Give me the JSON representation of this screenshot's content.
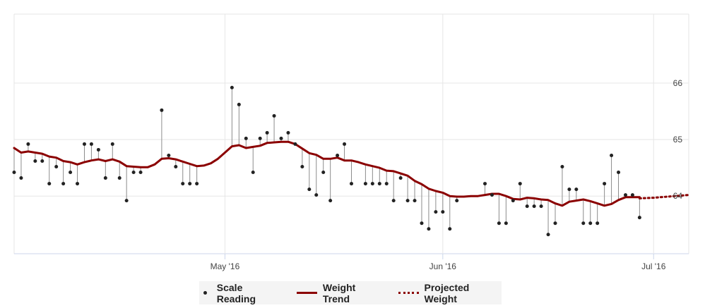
{
  "chart_data": {
    "type": "line",
    "x_range": [
      "2016-04-01",
      "2016-07-06"
    ],
    "ylim": [
      62.98,
      67.22
    ],
    "y_ticks": [
      64,
      65,
      66
    ],
    "x_ticks": [
      {
        "date": "2016-05-01",
        "label": "May '16"
      },
      {
        "date": "2016-06-01",
        "label": "Jun '16"
      },
      {
        "date": "2016-07-01",
        "label": "Jul '16"
      }
    ],
    "grid": true,
    "legend_position": "bottom",
    "series": [
      {
        "name": "Scale Reading",
        "kind": "scatter",
        "color": "#222222",
        "points": [
          [
            "2016-04-01",
            64.42
          ],
          [
            "2016-04-02",
            64.32
          ],
          [
            "2016-04-03",
            64.92
          ],
          [
            "2016-04-04",
            64.62
          ],
          [
            "2016-04-05",
            64.62
          ],
          [
            "2016-04-06",
            64.22
          ],
          [
            "2016-04-07",
            64.52
          ],
          [
            "2016-04-08",
            64.22
          ],
          [
            "2016-04-09",
            64.42
          ],
          [
            "2016-04-10",
            64.22
          ],
          [
            "2016-04-11",
            64.92
          ],
          [
            "2016-04-12",
            64.92
          ],
          [
            "2016-04-13",
            64.82
          ],
          [
            "2016-04-14",
            64.32
          ],
          [
            "2016-04-15",
            64.92
          ],
          [
            "2016-04-16",
            64.32
          ],
          [
            "2016-04-17",
            63.92
          ],
          [
            "2016-04-18",
            64.42
          ],
          [
            "2016-04-19",
            64.42
          ],
          [
            "2016-04-22",
            65.52
          ],
          [
            "2016-04-23",
            64.72
          ],
          [
            "2016-04-24",
            64.52
          ],
          [
            "2016-04-25",
            64.22
          ],
          [
            "2016-04-26",
            64.22
          ],
          [
            "2016-04-27",
            64.22
          ],
          [
            "2016-05-02",
            65.92
          ],
          [
            "2016-05-03",
            65.62
          ],
          [
            "2016-05-04",
            65.02
          ],
          [
            "2016-05-05",
            64.42
          ],
          [
            "2016-05-06",
            65.02
          ],
          [
            "2016-05-07",
            65.12
          ],
          [
            "2016-05-08",
            65.42
          ],
          [
            "2016-05-09",
            65.02
          ],
          [
            "2016-05-10",
            65.12
          ],
          [
            "2016-05-11",
            64.92
          ],
          [
            "2016-05-12",
            64.52
          ],
          [
            "2016-05-13",
            64.12
          ],
          [
            "2016-05-14",
            64.02
          ],
          [
            "2016-05-15",
            64.42
          ],
          [
            "2016-05-16",
            63.92
          ],
          [
            "2016-05-17",
            64.72
          ],
          [
            "2016-05-18",
            64.92
          ],
          [
            "2016-05-19",
            64.22
          ],
          [
            "2016-05-21",
            64.22
          ],
          [
            "2016-05-22",
            64.22
          ],
          [
            "2016-05-23",
            64.22
          ],
          [
            "2016-05-24",
            64.22
          ],
          [
            "2016-05-25",
            63.92
          ],
          [
            "2016-05-26",
            64.32
          ],
          [
            "2016-05-27",
            63.92
          ],
          [
            "2016-05-28",
            63.92
          ],
          [
            "2016-05-29",
            63.52
          ],
          [
            "2016-05-30",
            63.42
          ],
          [
            "2016-05-31",
            63.72
          ],
          [
            "2016-06-01",
            63.72
          ],
          [
            "2016-06-02",
            63.42
          ],
          [
            "2016-06-03",
            63.92
          ],
          [
            "2016-06-07",
            64.22
          ],
          [
            "2016-06-08",
            64.02
          ],
          [
            "2016-06-09",
            63.52
          ],
          [
            "2016-06-10",
            63.52
          ],
          [
            "2016-06-11",
            63.92
          ],
          [
            "2016-06-12",
            64.22
          ],
          [
            "2016-06-13",
            63.82
          ],
          [
            "2016-06-14",
            63.82
          ],
          [
            "2016-06-15",
            63.82
          ],
          [
            "2016-06-16",
            63.32
          ],
          [
            "2016-06-17",
            63.52
          ],
          [
            "2016-06-18",
            64.52
          ],
          [
            "2016-06-19",
            64.12
          ],
          [
            "2016-06-20",
            64.12
          ],
          [
            "2016-06-21",
            63.52
          ],
          [
            "2016-06-22",
            63.52
          ],
          [
            "2016-06-23",
            63.52
          ],
          [
            "2016-06-24",
            64.22
          ],
          [
            "2016-06-25",
            64.72
          ],
          [
            "2016-06-26",
            64.42
          ],
          [
            "2016-06-27",
            64.02
          ],
          [
            "2016-06-28",
            64.02
          ],
          [
            "2016-06-29",
            63.62
          ]
        ]
      },
      {
        "name": "Weight Trend",
        "kind": "line",
        "color": "#8b0000",
        "points": [
          [
            "2016-04-01",
            64.85
          ],
          [
            "2016-04-02",
            64.77
          ],
          [
            "2016-04-03",
            64.79
          ],
          [
            "2016-04-04",
            64.77
          ],
          [
            "2016-04-05",
            64.75
          ],
          [
            "2016-04-06",
            64.7
          ],
          [
            "2016-04-07",
            64.68
          ],
          [
            "2016-04-08",
            64.62
          ],
          [
            "2016-04-09",
            64.6
          ],
          [
            "2016-04-10",
            64.56
          ],
          [
            "2016-04-11",
            64.6
          ],
          [
            "2016-04-12",
            64.63
          ],
          [
            "2016-04-13",
            64.65
          ],
          [
            "2016-04-14",
            64.62
          ],
          [
            "2016-04-15",
            64.65
          ],
          [
            "2016-04-16",
            64.61
          ],
          [
            "2016-04-17",
            64.53
          ],
          [
            "2016-04-18",
            64.52
          ],
          [
            "2016-04-19",
            64.51
          ],
          [
            "2016-04-20",
            64.51
          ],
          [
            "2016-04-21",
            64.56
          ],
          [
            "2016-04-22",
            64.66
          ],
          [
            "2016-04-23",
            64.67
          ],
          [
            "2016-04-24",
            64.65
          ],
          [
            "2016-04-25",
            64.61
          ],
          [
            "2016-04-26",
            64.57
          ],
          [
            "2016-04-27",
            64.53
          ],
          [
            "2016-04-28",
            64.54
          ],
          [
            "2016-04-29",
            64.58
          ],
          [
            "2016-04-30",
            64.66
          ],
          [
            "2016-05-01",
            64.77
          ],
          [
            "2016-05-02",
            64.88
          ],
          [
            "2016-05-03",
            64.9
          ],
          [
            "2016-05-04",
            64.85
          ],
          [
            "2016-05-05",
            64.87
          ],
          [
            "2016-05-06",
            64.89
          ],
          [
            "2016-05-07",
            64.94
          ],
          [
            "2016-05-08",
            64.95
          ],
          [
            "2016-05-09",
            64.96
          ],
          [
            "2016-05-10",
            64.96
          ],
          [
            "2016-05-11",
            64.92
          ],
          [
            "2016-05-12",
            64.84
          ],
          [
            "2016-05-13",
            64.76
          ],
          [
            "2016-05-14",
            64.73
          ],
          [
            "2016-05-15",
            64.66
          ],
          [
            "2016-05-16",
            64.66
          ],
          [
            "2016-05-17",
            64.68
          ],
          [
            "2016-05-18",
            64.63
          ],
          [
            "2016-05-19",
            64.63
          ],
          [
            "2016-05-20",
            64.6
          ],
          [
            "2016-05-21",
            64.56
          ],
          [
            "2016-05-22",
            64.53
          ],
          [
            "2016-05-23",
            64.5
          ],
          [
            "2016-05-24",
            64.45
          ],
          [
            "2016-05-25",
            64.44
          ],
          [
            "2016-05-26",
            64.4
          ],
          [
            "2016-05-27",
            64.36
          ],
          [
            "2016-05-28",
            64.27
          ],
          [
            "2016-05-29",
            64.21
          ],
          [
            "2016-05-30",
            64.13
          ],
          [
            "2016-05-31",
            64.09
          ],
          [
            "2016-06-01",
            64.06
          ],
          [
            "2016-06-02",
            64.0
          ],
          [
            "2016-06-03",
            63.99
          ],
          [
            "2016-06-04",
            63.99
          ],
          [
            "2016-06-05",
            64.0
          ],
          [
            "2016-06-06",
            64.0
          ],
          [
            "2016-06-07",
            64.02
          ],
          [
            "2016-06-08",
            64.04
          ],
          [
            "2016-06-09",
            64.04
          ],
          [
            "2016-06-10",
            64.0
          ],
          [
            "2016-06-11",
            63.95
          ],
          [
            "2016-06-12",
            63.94
          ],
          [
            "2016-06-13",
            63.97
          ],
          [
            "2016-06-14",
            63.96
          ],
          [
            "2016-06-15",
            63.94
          ],
          [
            "2016-06-16",
            63.93
          ],
          [
            "2016-06-17",
            63.87
          ],
          [
            "2016-06-18",
            63.83
          ],
          [
            "2016-06-19",
            63.9
          ],
          [
            "2016-06-20",
            63.92
          ],
          [
            "2016-06-21",
            63.94
          ],
          [
            "2016-06-22",
            63.91
          ],
          [
            "2016-06-23",
            63.87
          ],
          [
            "2016-06-24",
            63.83
          ],
          [
            "2016-06-25",
            63.86
          ],
          [
            "2016-06-26",
            63.93
          ],
          [
            "2016-06-27",
            63.98
          ],
          [
            "2016-06-28",
            63.98
          ],
          [
            "2016-06-29",
            63.98
          ]
        ]
      },
      {
        "name": "Projected Weight",
        "kind": "dotted-line",
        "color": "#8b0000",
        "points": [
          [
            "2016-06-29",
            63.96
          ],
          [
            "2016-07-01",
            63.97
          ],
          [
            "2016-07-03",
            63.99
          ],
          [
            "2016-07-06",
            64.02
          ]
        ]
      }
    ]
  },
  "legend": {
    "scale_reading": "Scale Reading",
    "weight_trend": "Weight Trend",
    "projected_weight": "Projected Weight"
  }
}
